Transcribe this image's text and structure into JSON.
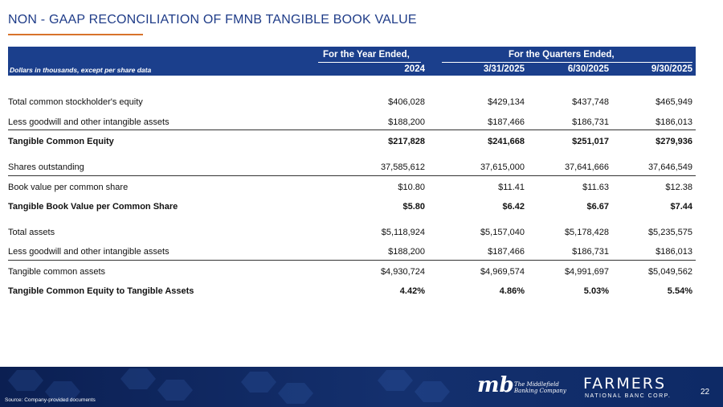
{
  "title": "NON - GAAP RECONCILIATION OF FMNB TANGIBLE BOOK VALUE",
  "header": {
    "group_year": "For the Year Ended,",
    "group_quarters": "For the Quarters Ended,",
    "row_label": "Dollars in thousands, except per share data",
    "columns": [
      "2024",
      "3/31/2025",
      "6/30/2025",
      "9/30/2025"
    ]
  },
  "rows": [
    {
      "label": "Total common stockholder's equity",
      "values": [
        "$406,028",
        "$429,134",
        "$437,748",
        "$465,949"
      ]
    },
    {
      "label": "Less goodwill and other intangible assets",
      "values": [
        "$188,200",
        "$187,466",
        "$186,731",
        "$186,013"
      ]
    },
    {
      "label": "Tangible Common Equity",
      "values": [
        "$217,828",
        "$241,668",
        "$251,017",
        "$279,936"
      ]
    },
    {
      "label": "Shares outstanding",
      "values": [
        "37,585,612",
        "37,615,000",
        "37,641,666",
        "37,646,549"
      ]
    },
    {
      "label": "Book value per common share",
      "values": [
        "$10.80",
        "$11.41",
        "$11.63",
        "$12.38"
      ]
    },
    {
      "label": "Tangible Book Value per Common Share",
      "values": [
        "$5.80",
        "$6.42",
        "$6.67",
        "$7.44"
      ]
    },
    {
      "label": "Total assets",
      "values": [
        "$5,118,924",
        "$5,157,040",
        "$5,178,428",
        "$5,235,575"
      ]
    },
    {
      "label": "Less goodwill and other intangible assets",
      "values": [
        "$188,200",
        "$187,466",
        "$186,731",
        "$186,013"
      ]
    },
    {
      "label": "Tangible common assets",
      "values": [
        "$4,930,724",
        "$4,969,574",
        "$4,991,697",
        "$5,049,562"
      ]
    },
    {
      "label": "Tangible Common Equity to Tangible Assets",
      "values": [
        "4.42%",
        "4.86%",
        "5.03%",
        "5.54%"
      ]
    }
  ],
  "footer": {
    "source": "Source: Company-provided documents",
    "mb_logo": "mb",
    "mb_name": "The Middlefield Banking Company",
    "farmers_name": "FARMERS",
    "farmers_sub": "NATIONAL BANC CORP.",
    "page_number": "22"
  },
  "colors": {
    "title": "#1f3c88",
    "accent": "#d8732c",
    "header_band": "#1b3f8c",
    "footer": "#0e2a66"
  }
}
